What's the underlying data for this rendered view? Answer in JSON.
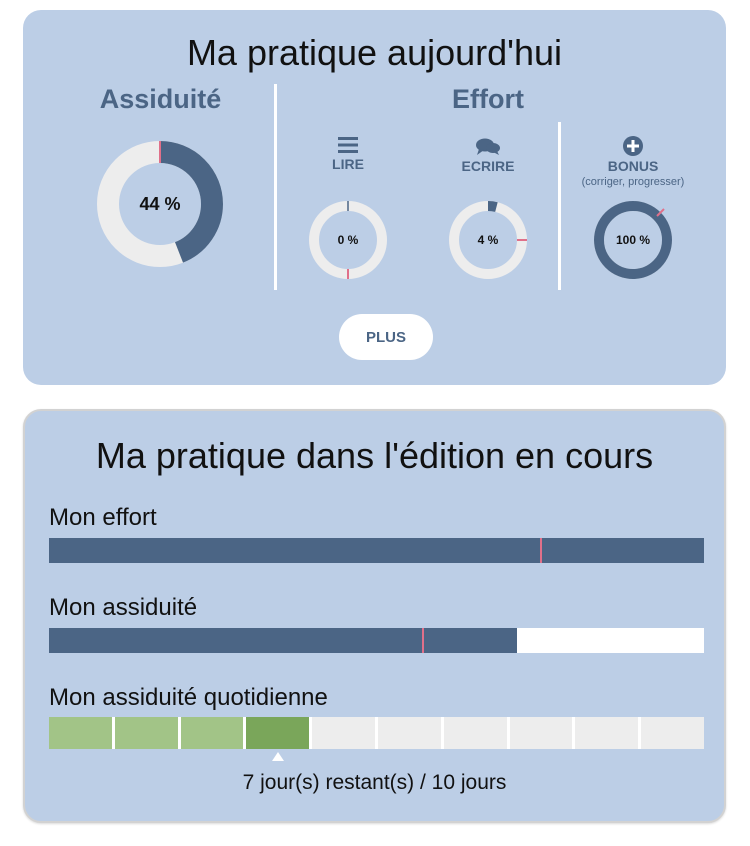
{
  "today": {
    "title": "Ma pratique aujourd'hui",
    "assiduite": {
      "title": "Assiduité",
      "value": 44,
      "label": "44 %"
    },
    "effort": {
      "title": "Effort",
      "items": [
        {
          "icon": "list-icon",
          "label": "LIRE",
          "sub": "",
          "value": 0,
          "label_value": "0 %"
        },
        {
          "icon": "chat-icon",
          "label": "ECRIRE",
          "sub": "",
          "value": 4,
          "label_value": "4 %"
        },
        {
          "icon": "plus-circle-icon",
          "label": "BONUS",
          "sub": "(corriger, progresser)",
          "value": 100,
          "label_value": "100 %"
        }
      ]
    },
    "plus_button": "PLUS"
  },
  "edition": {
    "title": "Ma pratique dans l'édition en cours",
    "effort": {
      "label": "Mon effort",
      "value": 100,
      "target": 75
    },
    "assiduite": {
      "label": "Mon assiduité",
      "value": 71.5,
      "target": 57
    },
    "quotidienne": {
      "label": "Mon assiduité quotidienne",
      "total_days": 10,
      "completed_days": 4,
      "current_day": 4,
      "remaining_text": "7 jour(s) restant(s) / 10 jours"
    }
  },
  "colors": {
    "card_bg": "#bccee6",
    "ring_fill": "#4b6585",
    "ring_track": "#ededed",
    "marker": "#e0708a",
    "day_done": "#a2c487",
    "day_current": "#7aa65a",
    "day_empty": "#ededed"
  }
}
